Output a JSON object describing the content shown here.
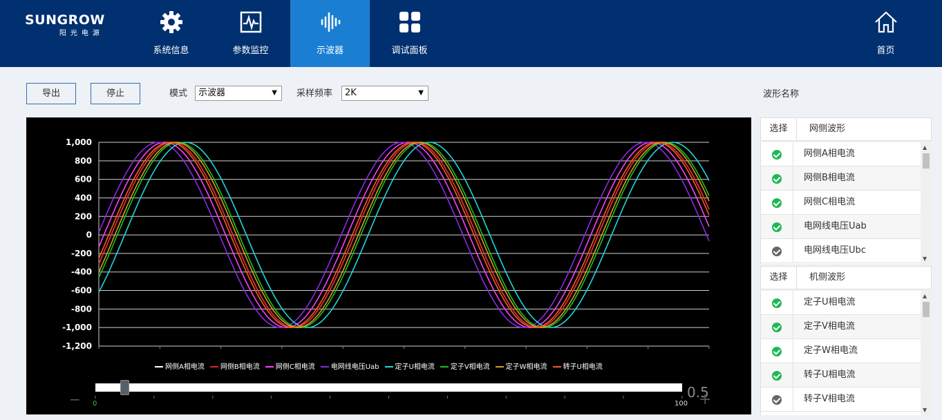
{
  "brand": {
    "name": "SUNGROW",
    "sub": "阳光电源"
  },
  "nav": {
    "items": [
      {
        "label": "系统信息",
        "icon": "gear-icon"
      },
      {
        "label": "参数监控",
        "icon": "monitor-pulse-icon"
      },
      {
        "label": "示波器",
        "icon": "waveform-icon"
      },
      {
        "label": "调试面板",
        "icon": "grid-icon"
      }
    ],
    "home": {
      "label": "首页",
      "icon": "home-icon"
    }
  },
  "toolbar": {
    "export_label": "导出",
    "stop_label": "停止",
    "mode_label": "模式",
    "mode_value": "示波器",
    "rate_label": "采样频率",
    "rate_value": "2K"
  },
  "zoom": {
    "minus": "−",
    "plus": "+",
    "value": "0.5",
    "range_min": "0",
    "range_max": "100",
    "position": 0.05
  },
  "chart_data": {
    "type": "line",
    "ylim": [
      -1200,
      1000
    ],
    "yticks": [
      "1,000",
      "800",
      "600",
      "400",
      "200",
      "0",
      "-200",
      "-400",
      "-600",
      "-800",
      "-1,000",
      "-1,200"
    ],
    "grid": true,
    "legend_position": "bottom",
    "waveform": "sine",
    "amplitude": 1000,
    "period": 399,
    "x_range": [
      0,
      1000
    ],
    "series": [
      {
        "name": "网侧A相电流",
        "color": "#ffffff",
        "phase": 0
      },
      {
        "name": "网侧B相电流",
        "color": "#e02020",
        "phase": 0
      },
      {
        "name": "网侧C相电流",
        "color": "#ff40ff",
        "phase": -12
      },
      {
        "name": "电网线电压Uab",
        "color": "#8a2be2",
        "phase": -22
      },
      {
        "name": "定子U相电流",
        "color": "#20d8d8",
        "phase": 22
      },
      {
        "name": "定子V相电流",
        "color": "#20c020",
        "phase": 10
      },
      {
        "name": "定子W相电流",
        "color": "#d4a020",
        "phase": 6
      },
      {
        "name": "转子U相电流",
        "color": "#ff5a20",
        "phase": -4
      }
    ]
  },
  "right_panel": {
    "title": "波形名称",
    "grid_group": {
      "select_label": "选择",
      "group_label": "网侧波形",
      "items": [
        {
          "name": "网侧A相电流",
          "checked": true
        },
        {
          "name": "网侧B相电流",
          "checked": true
        },
        {
          "name": "网侧C相电流",
          "checked": true
        },
        {
          "name": "电网线电压Uab",
          "checked": true
        },
        {
          "name": "电网线电压Ubc",
          "checked": false
        }
      ]
    },
    "machine_group": {
      "select_label": "选择",
      "group_label": "机侧波形",
      "items": [
        {
          "name": "定子U相电流",
          "checked": true
        },
        {
          "name": "定子V相电流",
          "checked": true
        },
        {
          "name": "定子W相电流",
          "checked": true
        },
        {
          "name": "转子U相电流",
          "checked": true
        },
        {
          "name": "转子V相电流",
          "checked": false
        }
      ]
    }
  }
}
